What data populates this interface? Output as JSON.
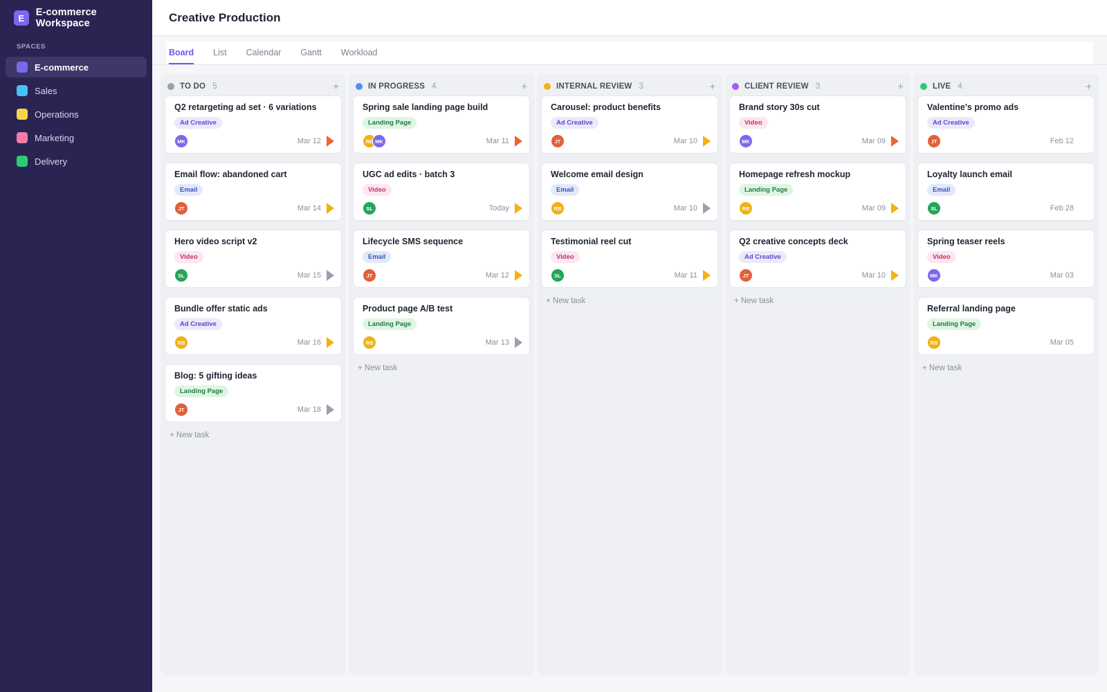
{
  "workspace": {
    "logo_letter": "E",
    "name": "E-commerce Workspace"
  },
  "sidebar": {
    "section_label": "SPACES",
    "items": [
      {
        "label": "E-commerce",
        "color": "#7b68ee",
        "active": true
      },
      {
        "label": "Sales",
        "color": "#49c2f2",
        "active": false
      },
      {
        "label": "Operations",
        "color": "#f5d44b",
        "active": false
      },
      {
        "label": "Marketing",
        "color": "#f27ba9",
        "active": false
      },
      {
        "label": "Delivery",
        "color": "#2ecc71",
        "active": false
      }
    ]
  },
  "header": {
    "title": "Creative Production"
  },
  "tabs": [
    {
      "label": "Board",
      "active": true
    },
    {
      "label": "List",
      "active": false
    },
    {
      "label": "Calendar",
      "active": false
    },
    {
      "label": "Gantt",
      "active": false
    },
    {
      "label": "Workload",
      "active": false
    }
  ],
  "tag_styles": {
    "Ad Creative": {
      "bg": "#ece9fb",
      "fg": "#5b48cc"
    },
    "Email": {
      "bg": "#e3e9fb",
      "fg": "#3b54b8"
    },
    "Video": {
      "bg": "#fde6ef",
      "fg": "#c0336f"
    },
    "Landing Page": {
      "bg": "#dff5e4",
      "fg": "#237a3d"
    }
  },
  "avatar_colors": {
    "MK": "#7b68ee",
    "JT": "#e2603a",
    "SL": "#23a55a",
    "RB": "#f0b213"
  },
  "priority_colors": {
    "urgent": "#ec6435",
    "high": "#f5b20f",
    "normal": "#9aa0ad"
  },
  "new_task_label": "+ New task",
  "columns": [
    {
      "title": "TO DO",
      "count": "5",
      "color": "#9aa0ad",
      "add_icon": "+",
      "cards": [
        {
          "title": "Q2 retargeting ad set · 6 variations",
          "tag": "Ad Creative",
          "assignees": [
            "MK"
          ],
          "due": "Mar 12",
          "priority": "urgent"
        },
        {
          "title": "Email flow: abandoned cart",
          "tag": "Email",
          "assignees": [
            "JT"
          ],
          "due": "Mar 14",
          "priority": "high"
        },
        {
          "title": "Hero video script v2",
          "tag": "Video",
          "assignees": [
            "SL"
          ],
          "due": "Mar 15",
          "priority": "normal"
        },
        {
          "title": "Bundle offer static ads",
          "tag": "Ad Creative",
          "assignees": [
            "RB"
          ],
          "due": "Mar 16",
          "priority": "high"
        },
        {
          "title": "Blog: 5 gifting ideas",
          "tag": "Landing Page",
          "assignees": [
            "JT"
          ],
          "due": "Mar 18",
          "priority": "normal"
        }
      ]
    },
    {
      "title": "IN PROGRESS",
      "count": "4",
      "color": "#4f8ef5",
      "add_icon": "+",
      "cards": [
        {
          "title": "Spring sale landing page build",
          "tag": "Landing Page",
          "assignees": [
            "RB",
            "MK"
          ],
          "due": "Mar 11",
          "priority": "urgent"
        },
        {
          "title": "UGC ad edits · batch 3",
          "tag": "Video",
          "assignees": [
            "SL"
          ],
          "due": "Today",
          "priority": "high"
        },
        {
          "title": "Lifecycle SMS sequence",
          "tag": "Email",
          "assignees": [
            "JT"
          ],
          "due": "Mar 12",
          "priority": "high"
        },
        {
          "title": "Product page A/B test",
          "tag": "Landing Page",
          "assignees": [
            "RB"
          ],
          "due": "Mar 13",
          "priority": "normal"
        }
      ]
    },
    {
      "title": "INTERNAL REVIEW",
      "count": "3",
      "color": "#f5b20f",
      "add_icon": "+",
      "cards": [
        {
          "title": "Carousel: product benefits",
          "tag": "Ad Creative",
          "assignees": [
            "JT"
          ],
          "due": "Mar 10",
          "priority": "high"
        },
        {
          "title": "Welcome email design",
          "tag": "Email",
          "assignees": [
            "RB"
          ],
          "due": "Mar 10",
          "priority": "normal"
        },
        {
          "title": "Testimonial reel cut",
          "tag": "Video",
          "assignees": [
            "SL"
          ],
          "due": "Mar 11",
          "priority": "high"
        }
      ]
    },
    {
      "title": "CLIENT REVIEW",
      "count": "3",
      "color": "#a45cf0",
      "add_icon": "+",
      "cards": [
        {
          "title": "Brand story 30s cut",
          "tag": "Video",
          "assignees": [
            "MK"
          ],
          "due": "Mar 09",
          "priority": "urgent"
        },
        {
          "title": "Homepage refresh mockup",
          "tag": "Landing Page",
          "assignees": [
            "RB"
          ],
          "due": "Mar 09",
          "priority": "high"
        },
        {
          "title": "Q2 creative concepts deck",
          "tag": "Ad Creative",
          "assignees": [
            "JT"
          ],
          "due": "Mar 10",
          "priority": "high"
        }
      ]
    },
    {
      "title": "LIVE",
      "count": "4",
      "color": "#2ecc71",
      "add_icon": "+",
      "cards": [
        {
          "title": "Valentine's promo ads",
          "tag": "Ad Creative",
          "assignees": [
            "JT"
          ],
          "due": "Feb 12",
          "priority": "none"
        },
        {
          "title": "Loyalty launch email",
          "tag": "Email",
          "assignees": [
            "SL"
          ],
          "due": "Feb 28",
          "priority": "none"
        },
        {
          "title": "Spring teaser reels",
          "tag": "Video",
          "assignees": [
            "MK"
          ],
          "due": "Mar 03",
          "priority": "none"
        },
        {
          "title": "Referral landing page",
          "tag": "Landing Page",
          "assignees": [
            "RB"
          ],
          "due": "Mar 05",
          "priority": "none"
        }
      ]
    }
  ]
}
